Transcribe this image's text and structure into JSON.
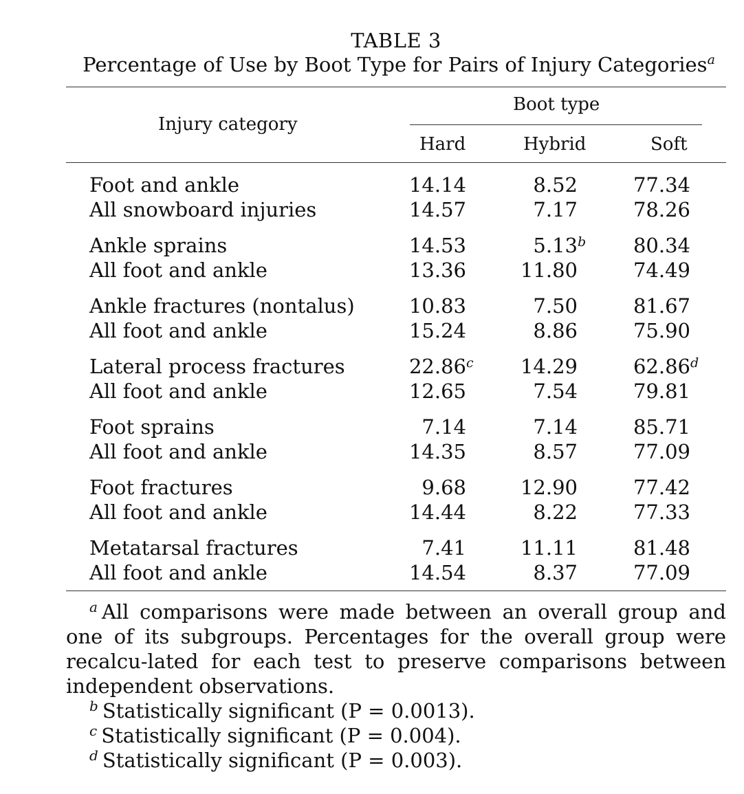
{
  "table": {
    "label": "TABLE 3",
    "caption": "Percentage of Use by Boot Type for Pairs of Injury Categories",
    "caption_sup": "a",
    "stub_header": "Injury category",
    "spanner_header": "Boot type",
    "columns": [
      "Hard",
      "Hybrid",
      "Soft"
    ],
    "groups": [
      {
        "rows": [
          {
            "label": "Foot and ankle",
            "hard": "14.14",
            "hard_sup": "",
            "hybrid": "8.52",
            "hybrid_sup": "",
            "soft": "77.34",
            "soft_sup": ""
          },
          {
            "label": "All snowboard injuries",
            "hard": "14.57",
            "hard_sup": "",
            "hybrid": "7.17",
            "hybrid_sup": "",
            "soft": "78.26",
            "soft_sup": ""
          }
        ]
      },
      {
        "rows": [
          {
            "label": "Ankle sprains",
            "hard": "14.53",
            "hard_sup": "",
            "hybrid": "5.13",
            "hybrid_sup": "b",
            "soft": "80.34",
            "soft_sup": ""
          },
          {
            "label": "All foot and ankle",
            "hard": "13.36",
            "hard_sup": "",
            "hybrid": "11.80",
            "hybrid_sup": "",
            "soft": "74.49",
            "soft_sup": ""
          }
        ]
      },
      {
        "rows": [
          {
            "label": "Ankle fractures (nontalus)",
            "hard": "10.83",
            "hard_sup": "",
            "hybrid": "7.50",
            "hybrid_sup": "",
            "soft": "81.67",
            "soft_sup": ""
          },
          {
            "label": "All foot and ankle",
            "hard": "15.24",
            "hard_sup": "",
            "hybrid": "8.86",
            "hybrid_sup": "",
            "soft": "75.90",
            "soft_sup": ""
          }
        ]
      },
      {
        "rows": [
          {
            "label": "Lateral process fractures",
            "hard": "22.86",
            "hard_sup": "c",
            "hybrid": "14.29",
            "hybrid_sup": "",
            "soft": "62.86",
            "soft_sup": "d"
          },
          {
            "label": "All foot and ankle",
            "hard": "12.65",
            "hard_sup": "",
            "hybrid": "7.54",
            "hybrid_sup": "",
            "soft": "79.81",
            "soft_sup": ""
          }
        ]
      },
      {
        "rows": [
          {
            "label": "Foot sprains",
            "hard": "7.14",
            "hard_sup": "",
            "hybrid": "7.14",
            "hybrid_sup": "",
            "soft": "85.71",
            "soft_sup": ""
          },
          {
            "label": "All foot and ankle",
            "hard": "14.35",
            "hard_sup": "",
            "hybrid": "8.57",
            "hybrid_sup": "",
            "soft": "77.09",
            "soft_sup": ""
          }
        ]
      },
      {
        "rows": [
          {
            "label": "Foot fractures",
            "hard": "9.68",
            "hard_sup": "",
            "hybrid": "12.90",
            "hybrid_sup": "",
            "soft": "77.42",
            "soft_sup": ""
          },
          {
            "label": "All foot and ankle",
            "hard": "14.44",
            "hard_sup": "",
            "hybrid": "8.22",
            "hybrid_sup": "",
            "soft": "77.33",
            "soft_sup": ""
          }
        ]
      },
      {
        "rows": [
          {
            "label": "Metatarsal fractures",
            "hard": "7.41",
            "hard_sup": "",
            "hybrid": "11.11",
            "hybrid_sup": "",
            "soft": "81.48",
            "soft_sup": ""
          },
          {
            "label": "All foot and ankle",
            "hard": "14.54",
            "hard_sup": "",
            "hybrid": "8.37",
            "hybrid_sup": "",
            "soft": "77.09",
            "soft_sup": ""
          }
        ]
      }
    ]
  },
  "footnotes": [
    {
      "mark": "a",
      "text": "All comparisons were made between an overall group and one of its subgroups. Percentages for the overall group were recalcu-lated for each test to preserve comparisons between independent observations."
    },
    {
      "mark": "b",
      "text": "Statistically significant (P = 0.0013)."
    },
    {
      "mark": "c",
      "text": "Statistically significant (P = 0.004)."
    },
    {
      "mark": "d",
      "text": "Statistically significant (P = 0.003)."
    }
  ]
}
